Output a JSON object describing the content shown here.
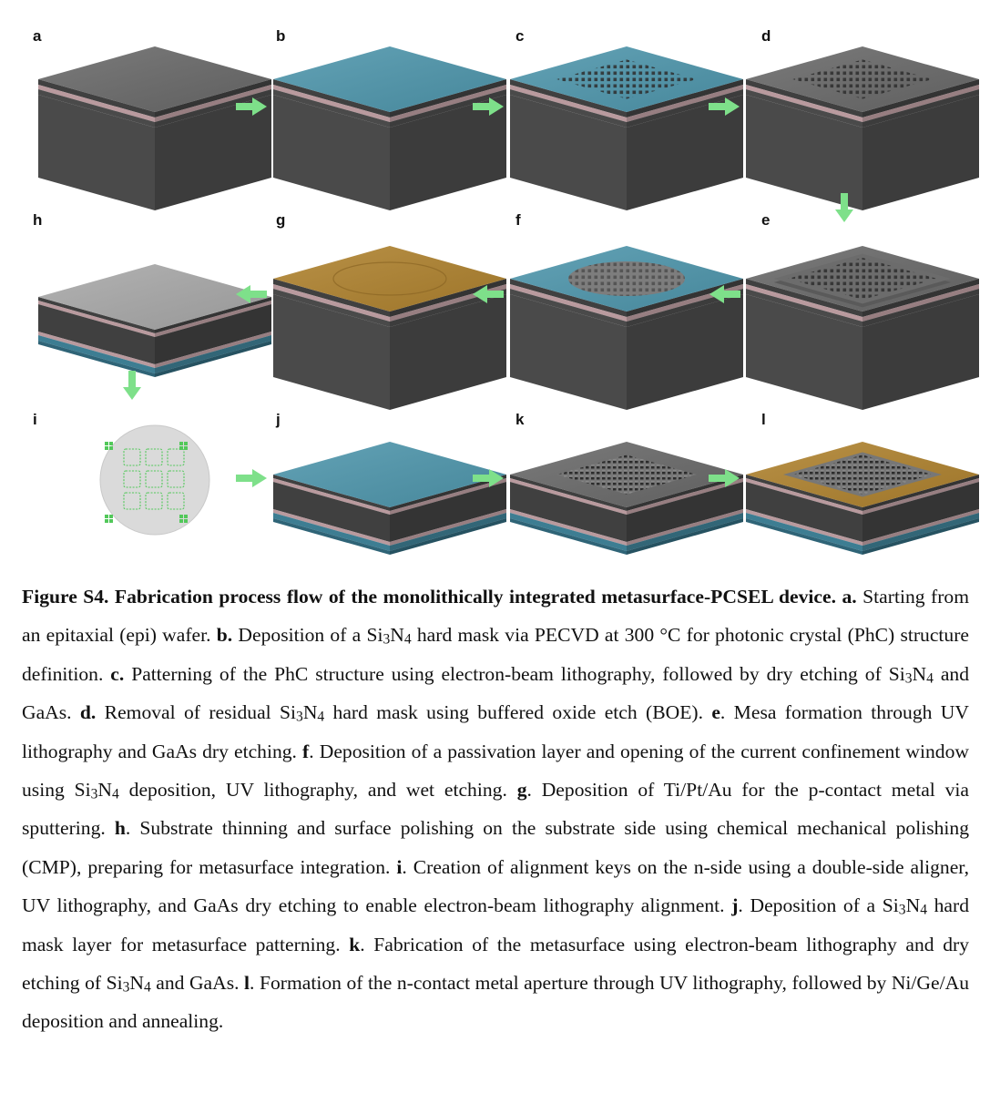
{
  "figure": {
    "panels": [
      {
        "label": "a",
        "top": "gray",
        "pattern": "none"
      },
      {
        "label": "b",
        "top": "blue",
        "pattern": "none"
      },
      {
        "label": "c",
        "top": "blue",
        "pattern": "square-holes"
      },
      {
        "label": "d",
        "top": "gray",
        "pattern": "square-holes"
      },
      {
        "label": "e",
        "top": "gray",
        "pattern": "mesa"
      },
      {
        "label": "f",
        "top": "blue",
        "pattern": "circular-window"
      },
      {
        "label": "g",
        "top": "gold",
        "pattern": "faint-circle"
      },
      {
        "label": "h",
        "top": "light-gray",
        "pattern": "thinned"
      },
      {
        "label": "i",
        "top": "wafer",
        "pattern": "alignment-keys"
      },
      {
        "label": "j",
        "top": "blue",
        "pattern": "thinned"
      },
      {
        "label": "k",
        "top": "gray",
        "pattern": "metasurface"
      },
      {
        "label": "l",
        "top": "gold",
        "pattern": "metasurface-aperture"
      }
    ],
    "colors": {
      "arrow": "#7ee08a",
      "blue_top": "#4f97ad",
      "gray_top": "#6a6a6a",
      "gold_top": "#b0832f",
      "light_top": "#a9a9a9",
      "side_dark": "#404040",
      "pink_layer": "#b99a9e",
      "blue_layer": "#3d7d92",
      "wafer": "#dadada",
      "key": "#52c85a"
    }
  },
  "caption": {
    "segments": [
      {
        "t": "Figure S4. Fabrication process flow of the monolithically integrated metasurface-PCSEL device. a.",
        "b": true
      },
      {
        "t": " Starting from an epitaxial (epi) wafer. "
      },
      {
        "t": "b.",
        "b": true
      },
      {
        "t": " Deposition of a Si"
      },
      {
        "t": "3",
        "s": true
      },
      {
        "t": "N"
      },
      {
        "t": "4",
        "s": true
      },
      {
        "t": " hard mask via PECVD at 300 °C for photonic crystal (PhC) structure definition. "
      },
      {
        "t": "c.",
        "b": true
      },
      {
        "t": " Patterning of the PhC structure using electron-beam lithography, followed by dry etching of Si"
      },
      {
        "t": "3",
        "s": true
      },
      {
        "t": "N"
      },
      {
        "t": "4",
        "s": true
      },
      {
        "t": " and GaAs. "
      },
      {
        "t": "d.",
        "b": true
      },
      {
        "t": " Removal of residual Si"
      },
      {
        "t": "3",
        "s": true
      },
      {
        "t": "N"
      },
      {
        "t": "4",
        "s": true
      },
      {
        "t": " hard mask using buffered oxide etch (BOE). "
      },
      {
        "t": "e",
        "b": true
      },
      {
        "t": ". Mesa formation through UV lithography and GaAs dry etching. "
      },
      {
        "t": "f",
        "b": true
      },
      {
        "t": ". Deposition of a passivation layer and opening of the current confinement window using Si"
      },
      {
        "t": "3",
        "s": true
      },
      {
        "t": "N"
      },
      {
        "t": "4",
        "s": true
      },
      {
        "t": " deposition, UV lithography, and wet etching. "
      },
      {
        "t": "g",
        "b": true
      },
      {
        "t": ". Deposition of Ti/Pt/Au for the p-contact metal via sputtering. "
      },
      {
        "t": "h",
        "b": true
      },
      {
        "t": ". Substrate thinning and surface polishing on the substrate side using chemical mechanical polishing (CMP), preparing for metasurface integration. "
      },
      {
        "t": "i",
        "b": true
      },
      {
        "t": ". Creation of alignment keys on the n-side using a double-side aligner, UV lithography, and GaAs dry etching to enable electron-beam lithography alignment. "
      },
      {
        "t": "j",
        "b": true
      },
      {
        "t": ". Deposition of a Si"
      },
      {
        "t": "3",
        "s": true
      },
      {
        "t": "N"
      },
      {
        "t": "4",
        "s": true
      },
      {
        "t": " hard mask layer for metasurface patterning. "
      },
      {
        "t": "k",
        "b": true
      },
      {
        "t": ". Fabrication of the metasurface using electron-beam lithography and dry etching of Si"
      },
      {
        "t": "3",
        "s": true
      },
      {
        "t": "N"
      },
      {
        "t": "4",
        "s": true
      },
      {
        "t": " and GaAs. "
      },
      {
        "t": "l",
        "b": true
      },
      {
        "t": ". Formation of the n-contact metal aperture through UV lithography, followed by Ni/Ge/Au deposition and annealing."
      }
    ]
  }
}
